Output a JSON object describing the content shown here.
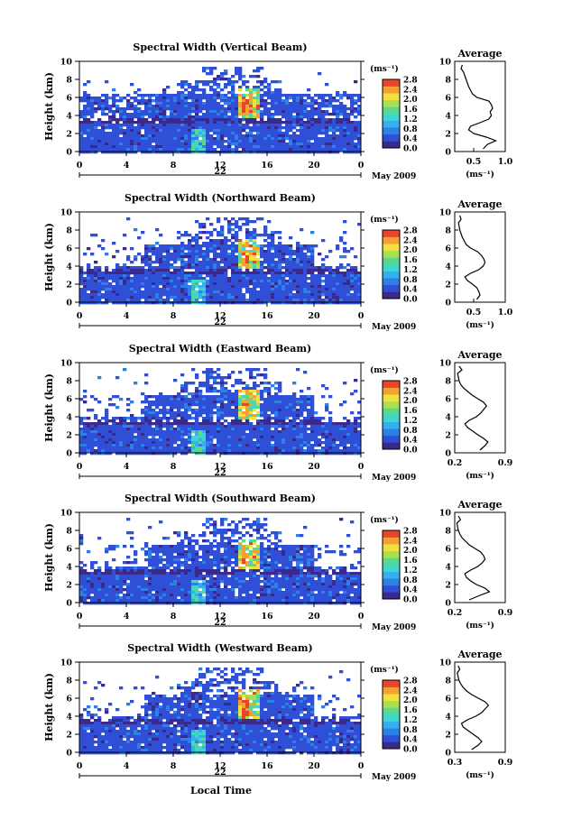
{
  "figure": {
    "xlabel": "Local Time",
    "date_label": "May 2009"
  },
  "colorbar": {
    "unit": "(ms⁻¹)",
    "ticks": [
      "2.8",
      "2.4",
      "2.0",
      "1.6",
      "1.2",
      "0.8",
      "0.4",
      "0.0"
    ],
    "range": [
      0.0,
      2.8
    ],
    "colors": [
      "#3b2a8c",
      "#2f4fd6",
      "#2f7fe8",
      "#35b0ee",
      "#3fd6d0",
      "#59d990",
      "#a8e050",
      "#f0e040",
      "#f5a032",
      "#e8462a"
    ]
  },
  "chart_data": [
    {
      "type": "heatmap",
      "title": "Spectral Width (Vertical Beam)",
      "ylabel": "Height (km)",
      "xticks": [
        "0",
        "4",
        "8",
        "12",
        "16",
        "20",
        "0"
      ],
      "yticks": [
        "0",
        "2",
        "4",
        "6",
        "8",
        "10"
      ],
      "xlim": [
        0,
        24
      ],
      "ylim": [
        0,
        10
      ],
      "date_tick": "22",
      "profile": {
        "title": "Average",
        "xticks": [
          "0.5",
          "1.0"
        ],
        "xlim": [
          0.2,
          1.0
        ],
        "xlabel": "(ms⁻¹)",
        "height": [
          0.3,
          0.8,
          1.2,
          1.6,
          2.0,
          2.4,
          2.8,
          3.2,
          3.6,
          4.0,
          4.4,
          4.8,
          5.2,
          5.6,
          6.0,
          6.4,
          6.8,
          7.2,
          7.6,
          8.0,
          8.4,
          8.8,
          9.2,
          9.6
        ],
        "width": [
          0.65,
          0.72,
          0.85,
          0.7,
          0.5,
          0.42,
          0.45,
          0.6,
          0.74,
          0.78,
          0.76,
          0.8,
          0.78,
          0.74,
          0.55,
          0.48,
          0.45,
          0.42,
          0.4,
          0.38,
          0.36,
          0.34,
          0.3,
          0.32
        ]
      }
    },
    {
      "type": "heatmap",
      "title": "Spectral Width (Northward Beam)",
      "ylabel": "Height (km)",
      "xticks": [
        "0",
        "4",
        "8",
        "12",
        "16",
        "20",
        "0"
      ],
      "yticks": [
        "0",
        "2",
        "4",
        "6",
        "8",
        "10"
      ],
      "xlim": [
        0,
        24
      ],
      "ylim": [
        0,
        10
      ],
      "date_tick": "22",
      "profile": {
        "title": "Average",
        "xticks": [
          "0.5",
          "1.0"
        ],
        "xlim": [
          0.2,
          1.0
        ],
        "xlabel": "(ms⁻¹)",
        "height": [
          0.3,
          0.8,
          1.2,
          1.6,
          2.0,
          2.4,
          2.8,
          3.2,
          3.6,
          4.0,
          4.4,
          4.8,
          5.2,
          5.6,
          6.0,
          6.4,
          6.8,
          7.2,
          7.6,
          8.0,
          8.4,
          8.8,
          9.2,
          9.6
        ],
        "width": [
          0.55,
          0.6,
          0.58,
          0.55,
          0.48,
          0.4,
          0.36,
          0.45,
          0.58,
          0.65,
          0.68,
          0.66,
          0.62,
          0.56,
          0.45,
          0.38,
          0.35,
          0.32,
          0.3,
          0.28,
          0.27,
          0.26,
          0.3,
          0.28
        ]
      }
    },
    {
      "type": "heatmap",
      "title": "Spectral Width (Eastward Beam)",
      "ylabel": "Height (km)",
      "xticks": [
        "0",
        "4",
        "8",
        "12",
        "16",
        "20",
        "0"
      ],
      "yticks": [
        "0",
        "2",
        "4",
        "6",
        "8",
        "10"
      ],
      "xlim": [
        0,
        24
      ],
      "ylim": [
        0,
        10
      ],
      "date_tick": "22",
      "profile": {
        "title": "Average",
        "xticks": [
          "0.2",
          "0.9"
        ],
        "xlim": [
          0.2,
          0.9
        ],
        "xlabel": "(ms⁻¹)",
        "height": [
          0.3,
          0.8,
          1.2,
          1.6,
          2.0,
          2.4,
          2.8,
          3.2,
          3.6,
          4.0,
          4.4,
          4.8,
          5.2,
          5.6,
          6.0,
          6.4,
          6.8,
          7.2,
          7.6,
          8.0,
          8.4,
          8.8,
          9.2,
          9.6
        ],
        "width": [
          0.55,
          0.62,
          0.66,
          0.6,
          0.52,
          0.45,
          0.38,
          0.34,
          0.4,
          0.5,
          0.56,
          0.6,
          0.64,
          0.6,
          0.52,
          0.44,
          0.38,
          0.32,
          0.28,
          0.26,
          0.25,
          0.24,
          0.3,
          0.26
        ]
      }
    },
    {
      "type": "heatmap",
      "title": "Spectral Width (Southward Beam)",
      "ylabel": "Height (km)",
      "xticks": [
        "0",
        "4",
        "8",
        "12",
        "16",
        "20",
        "0"
      ],
      "yticks": [
        "0",
        "2",
        "4",
        "6",
        "8",
        "10"
      ],
      "xlim": [
        0,
        24
      ],
      "ylim": [
        0,
        10
      ],
      "date_tick": "22",
      "profile": {
        "title": "Average",
        "xticks": [
          "0.2",
          "0.9"
        ],
        "xlim": [
          0.2,
          0.9
        ],
        "xlabel": "(ms⁻¹)",
        "height": [
          0.3,
          0.8,
          1.2,
          1.6,
          2.0,
          2.4,
          2.8,
          3.2,
          3.6,
          4.0,
          4.4,
          4.8,
          5.2,
          5.6,
          6.0,
          6.4,
          6.8,
          7.2,
          7.6,
          8.0,
          8.4,
          8.8,
          9.2,
          9.6
        ],
        "width": [
          0.4,
          0.55,
          0.68,
          0.62,
          0.5,
          0.42,
          0.36,
          0.34,
          0.42,
          0.52,
          0.58,
          0.62,
          0.6,
          0.56,
          0.48,
          0.4,
          0.35,
          0.3,
          0.27,
          0.25,
          0.24,
          0.23,
          0.28,
          0.25
        ]
      }
    },
    {
      "type": "heatmap",
      "title": "Spectral Width (Westward Beam)",
      "ylabel": "Height (km)",
      "xticks": [
        "0",
        "4",
        "8",
        "12",
        "16",
        "20",
        "0"
      ],
      "yticks": [
        "0",
        "2",
        "4",
        "6",
        "8",
        "10"
      ],
      "xlim": [
        0,
        24
      ],
      "ylim": [
        0,
        10
      ],
      "date_tick": "22",
      "profile": {
        "title": "Average",
        "xticks": [
          "0.3",
          "0.9"
        ],
        "xlim": [
          0.3,
          0.9
        ],
        "xlabel": "(ms⁻¹)",
        "height": [
          0.3,
          0.8,
          1.2,
          1.6,
          2.0,
          2.4,
          2.8,
          3.2,
          3.6,
          4.0,
          4.4,
          4.8,
          5.2,
          5.6,
          6.0,
          6.4,
          6.8,
          7.2,
          7.6,
          8.0,
          8.4,
          8.8,
          9.2,
          9.6
        ],
        "width": [
          0.5,
          0.58,
          0.62,
          0.58,
          0.52,
          0.46,
          0.4,
          0.38,
          0.45,
          0.55,
          0.62,
          0.66,
          0.7,
          0.66,
          0.58,
          0.5,
          0.44,
          0.4,
          0.37,
          0.35,
          0.34,
          0.33,
          0.36,
          0.34
        ]
      }
    }
  ]
}
